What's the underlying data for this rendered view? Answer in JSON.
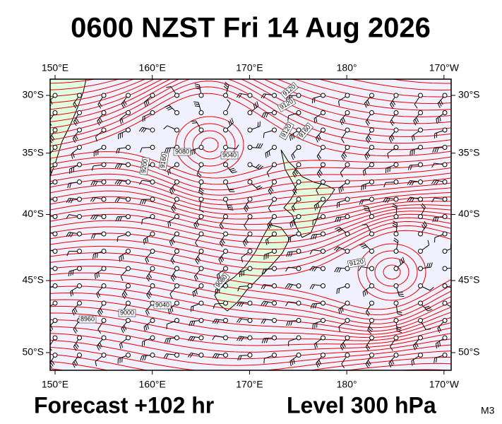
{
  "header": {
    "title": "0600 NZST Fri 14 Aug 2026"
  },
  "map": {
    "lon_ticks": [
      {
        "value": 150,
        "label": "150°E"
      },
      {
        "value": 160,
        "label": "160°E"
      },
      {
        "value": 170,
        "label": "170°E"
      },
      {
        "value": 180,
        "label": "180°"
      },
      {
        "value": 190,
        "label": "170°W"
      }
    ],
    "lat_ticks": [
      {
        "value": -30,
        "label": "30°S"
      },
      {
        "value": -35,
        "label": "35°S"
      },
      {
        "value": -40,
        "label": "40°S"
      },
      {
        "value": -45,
        "label": "45°S"
      },
      {
        "value": -50,
        "label": "50°S"
      }
    ],
    "contour_labels": [
      9120,
      9040,
      9080,
      9200,
      9160,
      9120,
      9000,
      8960,
      9040,
      9120,
      9080,
      9120,
      9160
    ]
  },
  "footer": {
    "forecast": "Forecast +102 hr",
    "level": "Level 300 hPa",
    "model": "M3"
  }
}
